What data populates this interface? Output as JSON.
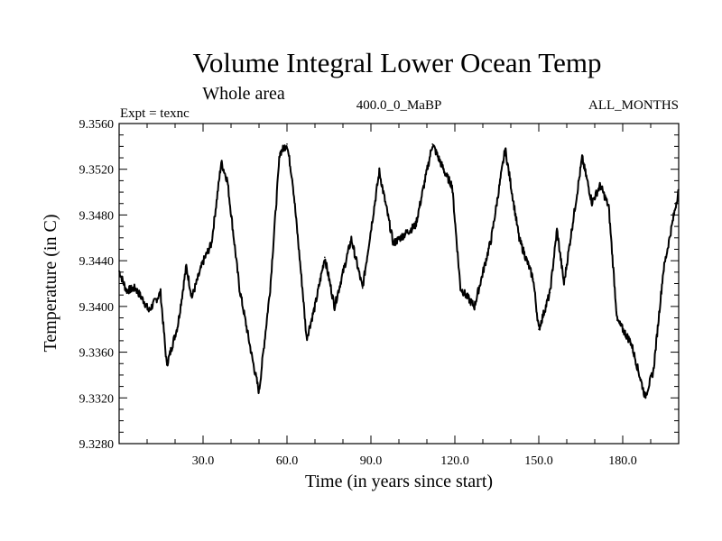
{
  "chart_data": {
    "type": "line",
    "title": "Volume Integral Lower Ocean Temp",
    "subtitle": "Whole area",
    "annotations": {
      "left": "Expt = texnc",
      "center": "400.0_0_MaBP",
      "right": "ALL_MONTHS"
    },
    "xlabel": "Time (in years since start)",
    "ylabel": "Temperature (in C)",
    "xlim": [
      0,
      200
    ],
    "ylim": [
      9.328,
      9.356
    ],
    "xticks": [
      30,
      60,
      90,
      120,
      150,
      180
    ],
    "xtick_labels": [
      "30.0",
      "60.0",
      "90.0",
      "120.0",
      "150.0",
      "180.0"
    ],
    "x_minor_step": 10,
    "yticks": [
      9.328,
      9.332,
      9.336,
      9.34,
      9.344,
      9.348,
      9.352,
      9.356
    ],
    "ytick_labels": [
      "9.3280",
      "9.3320",
      "9.3360",
      "9.3400",
      "9.3440",
      "9.3480",
      "9.3520",
      "9.3560"
    ],
    "y_minor_step": 0.001,
    "grid": false,
    "legend": "none",
    "series": [
      {
        "name": "Volume Integral Lower Ocean Temp",
        "color": "#000000",
        "x": [
          0,
          2.6,
          5.8,
          9,
          10.6,
          14.8,
          17,
          18,
          21,
          24,
          26,
          30,
          33,
          36.5,
          38.7,
          43,
          47.7,
          50,
          54,
          57.4,
          60,
          62,
          65.5,
          67,
          70,
          73.5,
          77,
          83,
          87,
          93,
          98,
          106,
          112,
          117,
          119,
          122,
          127,
          133,
          138,
          143,
          148,
          150,
          154,
          156.5,
          159,
          165.5,
          169,
          172,
          175,
          178,
          183,
          188,
          191,
          194.5,
          200
        ],
        "y": [
          9.3431,
          9.3414,
          9.3416,
          9.3404,
          9.3396,
          9.3412,
          9.3349,
          9.3357,
          9.3384,
          9.3435,
          9.3408,
          9.3439,
          9.3455,
          9.3526,
          9.351,
          9.3416,
          9.3353,
          9.3325,
          9.3416,
          9.3534,
          9.3542,
          9.351,
          9.3416,
          9.3372,
          9.34,
          9.3443,
          9.34,
          9.3459,
          9.3416,
          9.3518,
          9.3455,
          9.3471,
          9.3542,
          9.3514,
          9.3506,
          9.3416,
          9.34,
          9.3459,
          9.3538,
          9.3459,
          9.3424,
          9.338,
          9.3412,
          9.3467,
          9.342,
          9.353,
          9.3491,
          9.3506,
          9.3487,
          9.3388,
          9.3368,
          9.3321,
          9.3344,
          9.3431,
          9.3502
        ]
      }
    ]
  }
}
